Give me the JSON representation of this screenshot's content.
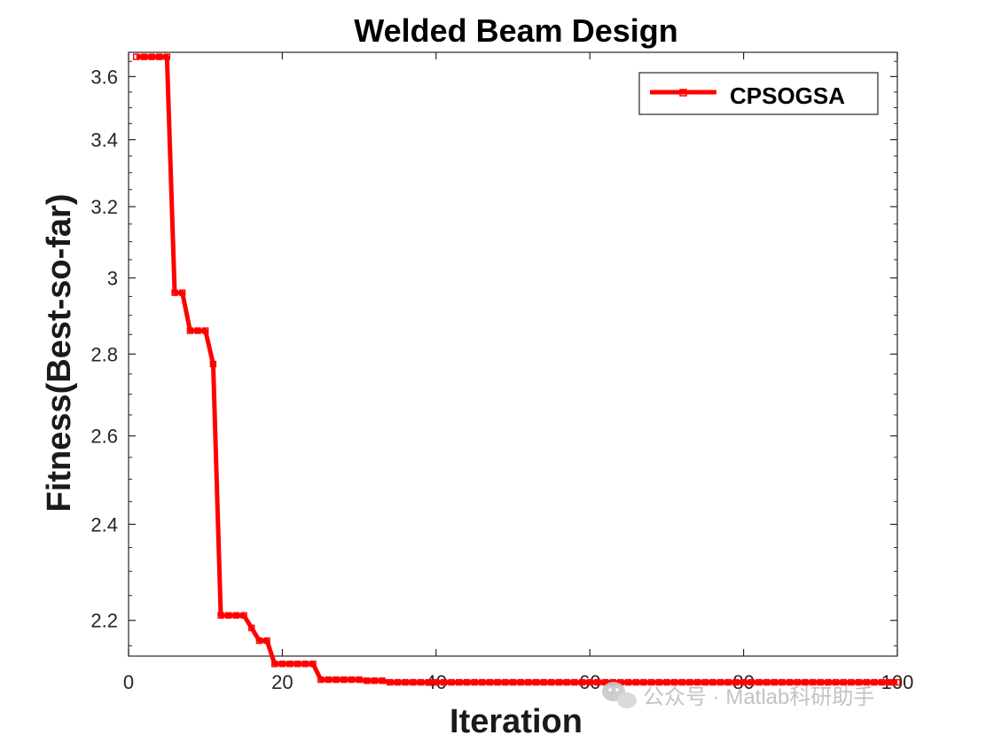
{
  "chart_data": {
    "type": "line",
    "title": "Welded Beam Design",
    "xlabel": "Iteration",
    "ylabel": "Fitness(Best-so-far)",
    "xlim": [
      0,
      100
    ],
    "ylim": [
      2.13,
      3.68
    ],
    "y_scale": "log",
    "x_ticks": [
      0,
      20,
      40,
      60,
      80,
      100
    ],
    "y_ticks": [
      2.2,
      2.4,
      2.6,
      2.8,
      3.0,
      3.2,
      3.4,
      3.6
    ],
    "y_tick_labels": [
      "2.2",
      "2.4",
      "2.6",
      "2.8",
      "3",
      "3.2",
      "3.4",
      "3.6"
    ],
    "x_tick_labels": [
      "0",
      "20",
      "40",
      "60",
      "80",
      "100"
    ],
    "grid": false,
    "legend_position": "top-right",
    "series": [
      {
        "name": "CPSOGSA",
        "color": "#ff0000",
        "x": [
          1,
          2,
          3,
          4,
          5,
          6,
          7,
          8,
          9,
          10,
          11,
          12,
          13,
          14,
          15,
          16,
          17,
          18,
          19,
          20,
          21,
          22,
          23,
          24,
          25,
          26,
          27,
          28,
          29,
          30,
          31,
          32,
          33,
          34,
          35,
          36,
          37,
          38,
          39,
          40,
          41,
          42,
          43,
          44,
          45,
          46,
          47,
          48,
          49,
          50,
          51,
          52,
          53,
          54,
          55,
          56,
          57,
          58,
          59,
          60,
          61,
          62,
          63,
          64,
          65,
          66,
          67,
          68,
          69,
          70,
          71,
          72,
          73,
          74,
          75,
          76,
          77,
          78,
          79,
          80,
          81,
          82,
          83,
          84,
          85,
          86,
          87,
          88,
          89,
          90,
          91,
          92,
          93,
          94,
          95,
          96,
          97,
          98,
          99,
          100
        ],
        "y": [
          3.665,
          3.665,
          3.665,
          3.665,
          3.665,
          2.96,
          2.96,
          2.86,
          2.86,
          2.86,
          2.775,
          2.21,
          2.21,
          2.21,
          2.21,
          2.185,
          2.16,
          2.16,
          2.115,
          2.115,
          2.115,
          2.115,
          2.115,
          2.115,
          2.085,
          2.085,
          2.085,
          2.085,
          2.085,
          2.085,
          2.083,
          2.083,
          2.083,
          2.08,
          2.08,
          2.08,
          2.08,
          2.08,
          2.08,
          2.08,
          2.08,
          2.08,
          2.08,
          2.08,
          2.08,
          2.08,
          2.08,
          2.08,
          2.08,
          2.08,
          2.08,
          2.08,
          2.08,
          2.08,
          2.08,
          2.08,
          2.08,
          2.08,
          2.08,
          2.08,
          2.08,
          2.08,
          2.08,
          2.08,
          2.08,
          2.08,
          2.08,
          2.08,
          2.08,
          2.08,
          2.08,
          2.08,
          2.08,
          2.08,
          2.08,
          2.08,
          2.08,
          2.08,
          2.08,
          2.08,
          2.08,
          2.08,
          2.08,
          2.08,
          2.08,
          2.08,
          2.08,
          2.08,
          2.08,
          2.08,
          2.08,
          2.08,
          2.08,
          2.08,
          2.08,
          2.08,
          2.08,
          2.08,
          2.08,
          2.08
        ]
      }
    ]
  },
  "watermark": {
    "text": "公众号 · Matlab科研助手",
    "icon": "wechat-icon"
  }
}
